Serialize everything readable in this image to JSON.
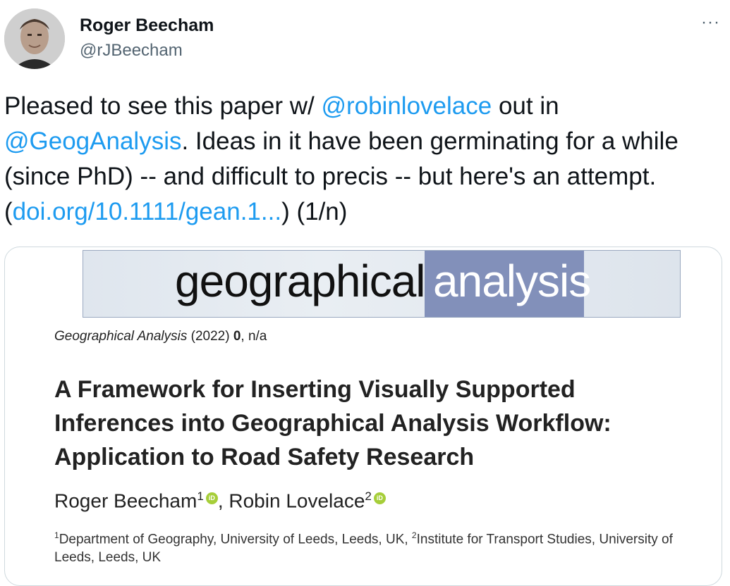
{
  "author": {
    "name": "Roger Beecham",
    "handle": "@rJBeecham"
  },
  "menu": {
    "more_label": "···"
  },
  "tweet": {
    "part1": "Pleased to see this paper w/ ",
    "mention1": "@robinlovelace",
    "part2": " out in ",
    "mention2": "@GeogAnalysis",
    "part3": ". Ideas in it have been germinating for a while (since PhD) -- and difficult to precis -- but here's an attempt. (",
    "link": "doi.org/10.1111/gean.1...",
    "part4": ") (1/n)"
  },
  "card": {
    "journal_left": "geographical",
    "journal_right": "analysis",
    "citation_journal": "Geographical Analysis",
    "citation_year": " (2022) ",
    "citation_volume": "0",
    "citation_pages": ", n/a",
    "title": "A Framework for Inserting Visually Supported Inferences into Geographical Analysis Workflow: Application to Road Safety Research",
    "author1": "Roger Beecham",
    "author1_sup": "1",
    "author2": "Robin Lovelace",
    "author2_sup": "2",
    "author_sep": ", ",
    "orcid_label": "iD",
    "affil_sup1": "1",
    "affil1": "Department of Geography, University of Leeds, Leeds, UK, ",
    "affil_sup2": "2",
    "affil2": "Institute for Transport Studies, University of Leeds, Leeds, UK"
  },
  "colors": {
    "link": "#1d9bf0",
    "text": "#0f1419",
    "secondary": "#536471",
    "journal_accent": "#8290ba",
    "orcid": "#a6ce39"
  }
}
